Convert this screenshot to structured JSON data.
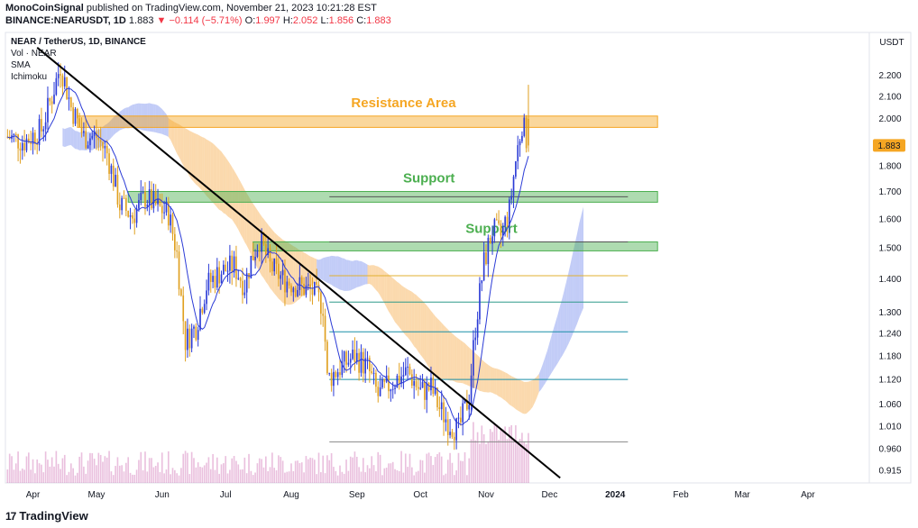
{
  "header": {
    "author": "MonoCoinSignal",
    "published": "published on TradingView.com, November 21, 2023 10:21:28 EST",
    "symbol_line": "BINANCE:NEARUSDT, 1D",
    "last_price": "1.883",
    "change": "▼ −0.114 (−5.71%)",
    "o_label": "O:",
    "o": "1.997",
    "h_label": "H:",
    "h": "2.052",
    "l_label": "L:",
    "l": "1.856",
    "c_label": "C:",
    "c": "1.883"
  },
  "legend": {
    "pair": "NEAR / TetherUS, 1D, BINANCE",
    "indicators": [
      "Vol · NEAR",
      "SMA",
      "Ichimoku"
    ]
  },
  "footer": {
    "brand": "TradingView",
    "logo_mark": "17"
  },
  "chart_data": {
    "type": "candlestick",
    "currency_label": "USDT",
    "y_scale": "log",
    "ylim": [
      0.89,
      2.42
    ],
    "y_ticks": [
      "2.200",
      "2.100",
      "2.000",
      "1.800",
      "1.700",
      "1.600",
      "1.500",
      "1.400",
      "1.300",
      "1.240",
      "1.180",
      "1.120",
      "1.060",
      "1.010",
      "0.960",
      "0.915"
    ],
    "current_price_label": "1.883",
    "x_ticks": [
      "Apr",
      "May",
      "Jun",
      "Jul",
      "Aug",
      "Sep",
      "Oct",
      "Nov",
      "Dec",
      "2024",
      "Feb",
      "Mar",
      "Apr"
    ],
    "x_range": [
      "2023-03-19",
      "2024-04-30"
    ],
    "annotations": [
      {
        "type": "zone",
        "label": "Resistance Area",
        "low": 1.96,
        "high": 2.01,
        "from": "2023-04-22",
        "to": "2024-01-21",
        "color": "#f5a623"
      },
      {
        "type": "zone",
        "label": "Support",
        "low": 1.66,
        "high": 1.7,
        "from": "2023-05-16",
        "to": "2024-01-21",
        "color": "#4caf50"
      },
      {
        "type": "zone",
        "label": "Support",
        "low": 1.49,
        "high": 1.52,
        "from": "2023-07-14",
        "to": "2024-01-21",
        "color": "#4caf50"
      },
      {
        "type": "trendline",
        "from": [
          "2023-04-03",
          2.34
        ],
        "to": [
          "2023-12-06",
          0.9
        ],
        "color": "#000000"
      }
    ],
    "horizontal_levels": [
      {
        "value": 1.68,
        "color": "#555555"
      },
      {
        "value": 1.52,
        "color": "#555555"
      },
      {
        "value": 1.41,
        "color": "#e0b030"
      },
      {
        "value": 1.33,
        "color": "#2e9a8a"
      },
      {
        "value": 1.245,
        "color": "#1a8fa8"
      },
      {
        "value": 1.12,
        "color": "#1a8fa8"
      },
      {
        "value": 0.975,
        "color": "#888888"
      }
    ],
    "series": [
      {
        "name": "NEAR",
        "kind": "ohlc",
        "start": "2023-03-20",
        "interval_days": 1
      },
      {
        "name": "SMA",
        "color": "#2b3bd6"
      },
      {
        "name": "Ichimoku cloud",
        "colors": [
          "#f7b96a",
          "#8fa3f0"
        ]
      },
      {
        "name": "Vol",
        "color": "#c24aa0"
      }
    ],
    "keypoints": [
      [
        "2023-03-20",
        1.92
      ],
      [
        "2023-03-28",
        1.9
      ],
      [
        "2023-04-05",
        1.95
      ],
      [
        "2023-04-10",
        2.1
      ],
      [
        "2023-04-14",
        2.25
      ],
      [
        "2023-04-19",
        2.05
      ],
      [
        "2023-04-25",
        1.92
      ],
      [
        "2023-05-01",
        1.92
      ],
      [
        "2023-05-06",
        1.85
      ],
      [
        "2023-05-12",
        1.65
      ],
      [
        "2023-05-18",
        1.61
      ],
      [
        "2023-05-24",
        1.68
      ],
      [
        "2023-05-30",
        1.64
      ],
      [
        "2023-06-04",
        1.62
      ],
      [
        "2023-06-08",
        1.48
      ],
      [
        "2023-06-10",
        1.34
      ],
      [
        "2023-06-12",
        1.22
      ],
      [
        "2023-06-17",
        1.26
      ],
      [
        "2023-06-22",
        1.38
      ],
      [
        "2023-06-28",
        1.42
      ],
      [
        "2023-07-05",
        1.44
      ],
      [
        "2023-07-10",
        1.38
      ],
      [
        "2023-07-13",
        1.46
      ],
      [
        "2023-07-17",
        1.53
      ],
      [
        "2023-07-22",
        1.44
      ],
      [
        "2023-07-28",
        1.4
      ],
      [
        "2023-08-04",
        1.38
      ],
      [
        "2023-08-11",
        1.36
      ],
      [
        "2023-08-16",
        1.32
      ],
      [
        "2023-08-18",
        1.12
      ],
      [
        "2023-08-24",
        1.15
      ],
      [
        "2023-08-31",
        1.18
      ],
      [
        "2023-09-06",
        1.15
      ],
      [
        "2023-09-11",
        1.08
      ],
      [
        "2023-09-17",
        1.11
      ],
      [
        "2023-09-25",
        1.14
      ],
      [
        "2023-10-01",
        1.09
      ],
      [
        "2023-10-06",
        1.1
      ],
      [
        "2023-10-10",
        1.05
      ],
      [
        "2023-10-14",
        1.02
      ],
      [
        "2023-10-19",
        1.0
      ],
      [
        "2023-10-24",
        1.08
      ],
      [
        "2023-10-27",
        1.26
      ],
      [
        "2023-10-31",
        1.45
      ],
      [
        "2023-11-04",
        1.56
      ],
      [
        "2023-11-08",
        1.54
      ],
      [
        "2023-11-12",
        1.63
      ],
      [
        "2023-11-15",
        1.82
      ],
      [
        "2023-11-18",
        1.98
      ],
      [
        "2023-11-21",
        1.883
      ]
    ]
  }
}
